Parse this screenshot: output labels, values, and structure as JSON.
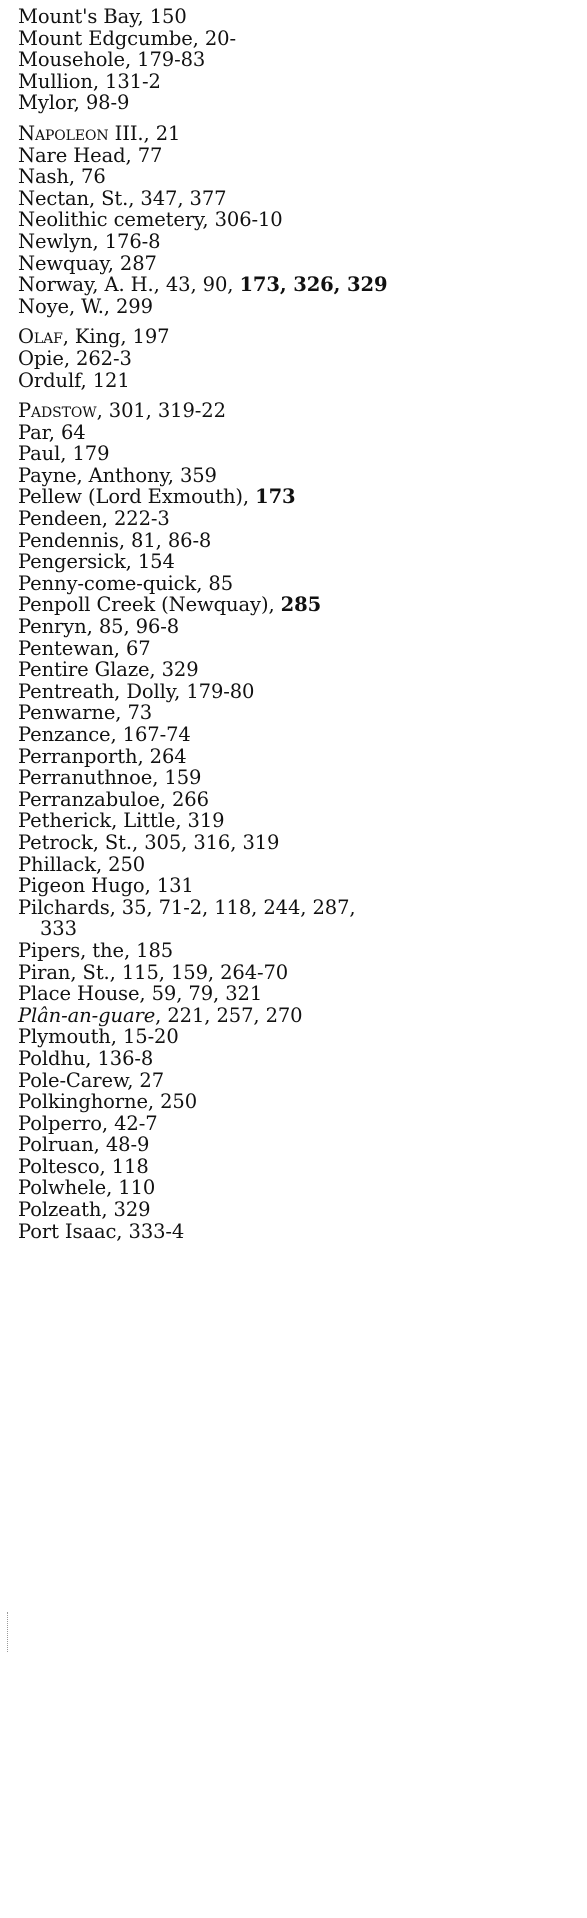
{
  "index_entries": [
    {
      "parts": [
        {
          "t": "Mount's Bay, 150"
        }
      ]
    },
    {
      "parts": [
        {
          "t": "Mount Edgcumbe, 20-"
        }
      ]
    },
    {
      "parts": [
        {
          "t": "Mousehole, 179-83"
        }
      ]
    },
    {
      "parts": [
        {
          "t": "Mullion, 131-2"
        }
      ]
    },
    {
      "parts": [
        {
          "t": "Mylor, 98-9"
        }
      ]
    },
    {
      "group_start": true,
      "parts": [
        {
          "t": "Napoleon",
          "style": "sc"
        },
        {
          "t": " III., 21"
        }
      ]
    },
    {
      "parts": [
        {
          "t": "Nare Head, 77"
        }
      ]
    },
    {
      "parts": [
        {
          "t": "Nash, 76"
        }
      ]
    },
    {
      "parts": [
        {
          "t": "Nectan, St., 347, 377"
        }
      ]
    },
    {
      "parts": [
        {
          "t": "Neolithic cemetery, 306-10"
        }
      ]
    },
    {
      "parts": [
        {
          "t": "Newlyn, 176-8"
        }
      ]
    },
    {
      "parts": [
        {
          "t": "Newquay, 287"
        }
      ]
    },
    {
      "parts": [
        {
          "t": "Norway, A. H., 43, 90, "
        },
        {
          "t": "173, 326, 329",
          "style": "b"
        }
      ]
    },
    {
      "parts": [
        {
          "t": "Noye, W., 299"
        }
      ]
    },
    {
      "group_start": true,
      "parts": [
        {
          "t": "Olaf",
          "style": "sc"
        },
        {
          "t": ", King, 197"
        }
      ]
    },
    {
      "parts": [
        {
          "t": "Opie, 262-3"
        }
      ]
    },
    {
      "parts": [
        {
          "t": "Ordulf, 121"
        }
      ]
    },
    {
      "group_start": true,
      "parts": [
        {
          "t": "Padstow",
          "style": "sc"
        },
        {
          "t": ", 301, 319-22"
        }
      ]
    },
    {
      "parts": [
        {
          "t": "Par, 64"
        }
      ]
    },
    {
      "parts": [
        {
          "t": "Paul, 179"
        }
      ]
    },
    {
      "parts": [
        {
          "t": "Payne, Anthony, 359"
        }
      ]
    },
    {
      "parts": [
        {
          "t": "Pellew (Lord Exmouth), "
        },
        {
          "t": "173",
          "style": "b"
        }
      ]
    },
    {
      "parts": [
        {
          "t": "Pendeen, 222-3"
        }
      ]
    },
    {
      "parts": [
        {
          "t": "Pendennis, 81, 86-8"
        }
      ]
    },
    {
      "parts": [
        {
          "t": "Pengersick, 154"
        }
      ]
    },
    {
      "parts": [
        {
          "t": "Penny-come-quick, 85"
        }
      ]
    },
    {
      "parts": [
        {
          "t": "Penpoll Creek (Newquay), "
        },
        {
          "t": "285",
          "style": "b"
        }
      ]
    },
    {
      "parts": [
        {
          "t": "Penryn, 85, 96-8"
        }
      ]
    },
    {
      "parts": [
        {
          "t": "Pentewan, 67"
        }
      ]
    },
    {
      "parts": [
        {
          "t": "Pentire Glaze, 329"
        }
      ]
    },
    {
      "parts": [
        {
          "t": "Pentreath, Dolly, 179-80"
        }
      ]
    },
    {
      "parts": [
        {
          "t": "Penwarne, 73"
        }
      ]
    },
    {
      "parts": [
        {
          "t": "Penzance, 167-74"
        }
      ]
    },
    {
      "parts": [
        {
          "t": "Perranporth, 264"
        }
      ]
    },
    {
      "parts": [
        {
          "t": "Perranuthnoe, 159"
        }
      ]
    },
    {
      "parts": [
        {
          "t": "Perranzabuloe, 266"
        }
      ]
    },
    {
      "parts": [
        {
          "t": "Petherick, Little, 319"
        }
      ]
    },
    {
      "parts": [
        {
          "t": "Petrock, St., 305, 316, 319"
        }
      ]
    },
    {
      "parts": [
        {
          "t": "Phillack, 250"
        }
      ]
    },
    {
      "parts": [
        {
          "t": "Pigeon Hugo, 131"
        }
      ]
    },
    {
      "parts": [
        {
          "t": "Pilchards, 35, 71-2, 118, 244, 287,"
        }
      ]
    },
    {
      "continuation": true,
      "parts": [
        {
          "t": "333"
        }
      ]
    },
    {
      "parts": [
        {
          "t": "Pipers, the, 185"
        }
      ]
    },
    {
      "parts": [
        {
          "t": "Piran, St., 115, 159, 264-70"
        }
      ]
    },
    {
      "parts": [
        {
          "t": "Place House, 59, 79, 321"
        }
      ]
    },
    {
      "parts": [
        {
          "t": "Plân-an-guare",
          "style": "i"
        },
        {
          "t": ", 221, 257, 270"
        }
      ]
    },
    {
      "parts": [
        {
          "t": "Plymouth, 15-20"
        }
      ]
    },
    {
      "parts": [
        {
          "t": "Poldhu, 136-8"
        }
      ]
    },
    {
      "parts": [
        {
          "t": "Pole-Carew, 27"
        }
      ]
    },
    {
      "parts": [
        {
          "t": "Polkinghorne, 250"
        }
      ]
    },
    {
      "parts": [
        {
          "t": "Polperro, 42-7"
        }
      ]
    },
    {
      "parts": [
        {
          "t": "Polruan, 48-9"
        }
      ]
    },
    {
      "parts": [
        {
          "t": "Poltesco, 118"
        }
      ]
    },
    {
      "parts": [
        {
          "t": "Polwhele, 110"
        }
      ]
    },
    {
      "parts": [
        {
          "t": "Polzeath, 329"
        }
      ]
    },
    {
      "parts": [
        {
          "t": "Port Isaac, 333-4"
        }
      ]
    }
  ]
}
